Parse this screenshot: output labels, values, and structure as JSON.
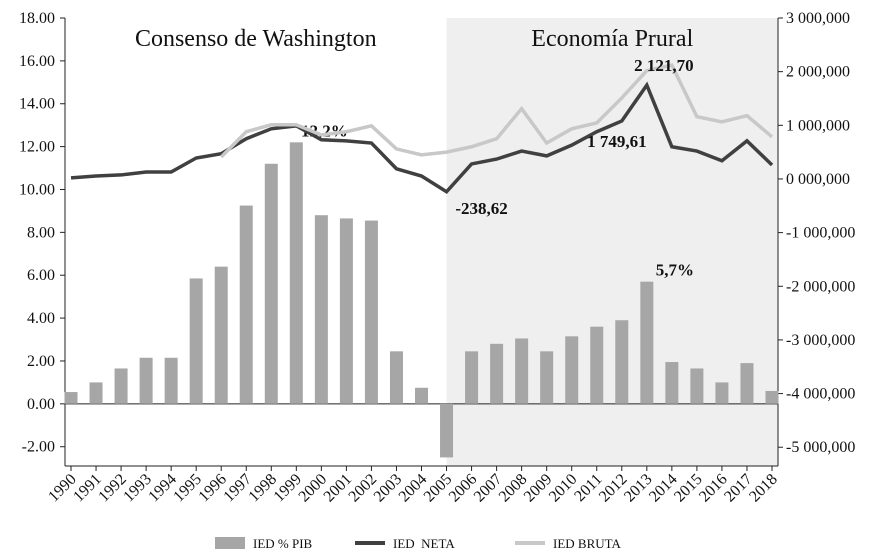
{
  "chart_data": {
    "type": "bar-line",
    "categories": [
      "1990",
      "1991",
      "1992",
      "1993",
      "1994",
      "1995",
      "1996",
      "1997",
      "1998",
      "1999",
      "2000",
      "2001",
      "2002",
      "2003",
      "2004",
      "2005",
      "2006",
      "2007",
      "2008",
      "2009",
      "2010",
      "2011",
      "2012",
      "2013",
      "2014",
      "2015",
      "2016",
      "2017",
      "2018"
    ],
    "periods": [
      {
        "label": "Consenso de Washington"
      },
      {
        "label": "Economía Prural",
        "from": "2005"
      }
    ],
    "shade_color": "#efefef",
    "series": [
      {
        "name": "IED % PIB",
        "type": "bar",
        "color": "#a6a6a6",
        "values": [
          0.55,
          1.0,
          1.65,
          2.15,
          2.15,
          5.85,
          6.4,
          9.25,
          11.2,
          12.2,
          8.8,
          8.65,
          8.55,
          2.45,
          0.75,
          -2.5,
          2.45,
          2.8,
          3.05,
          2.45,
          3.15,
          3.6,
          3.9,
          5.7,
          1.95,
          1.65,
          1.0,
          1.9,
          0.6
        ],
        "value_labels": [
          null,
          null,
          null,
          null,
          null,
          null,
          null,
          null,
          null,
          "12,2%",
          null,
          null,
          null,
          null,
          null,
          null,
          null,
          null,
          null,
          null,
          null,
          null,
          null,
          "5,7%",
          null,
          null,
          null,
          null,
          null
        ]
      },
      {
        "name": "IED  NETA",
        "type": "line",
        "axis": "y2",
        "color": "#404040",
        "values": [
          20,
          55,
          75,
          130,
          130,
          390,
          470,
          750,
          935,
          990,
          730,
          710,
          670,
          190,
          55,
          -238.62,
          280,
          370,
          520,
          430,
          630,
          880,
          1080,
          1749.61,
          600,
          520,
          340,
          710,
          260
        ],
        "value_labels": [
          null,
          null,
          null,
          null,
          null,
          null,
          null,
          null,
          null,
          null,
          null,
          null,
          null,
          null,
          null,
          "-238,62",
          null,
          null,
          null,
          null,
          null,
          null,
          null,
          "1 749,61",
          null,
          null,
          null,
          null,
          null
        ]
      },
      {
        "name": "IED BRUTA",
        "type": "line",
        "axis": "y2",
        "color": "#c8c8c8",
        "values": [
          null,
          null,
          null,
          null,
          null,
          null,
          410,
          880,
          1010,
          1010,
          820,
          880,
          990,
          560,
          450,
          500,
          600,
          750,
          1310,
          670,
          935,
          1045,
          1510,
          2020,
          2121.7,
          1160,
          1065,
          1180,
          785
        ],
        "value_labels": [
          null,
          null,
          null,
          null,
          null,
          null,
          null,
          null,
          null,
          null,
          null,
          null,
          null,
          null,
          null,
          null,
          null,
          null,
          null,
          null,
          null,
          null,
          null,
          null,
          "2 121,70",
          null,
          null,
          null,
          null
        ]
      }
    ],
    "ylim": [
      -2.9,
      18
    ],
    "yticks": [
      {
        "value": -2,
        "label": "-2.00"
      },
      {
        "value": 0,
        "label": "0.00"
      },
      {
        "value": 2,
        "label": "2.00"
      },
      {
        "value": 4,
        "label": "4.00"
      },
      {
        "value": 6,
        "label": "6.00"
      },
      {
        "value": 8,
        "label": "8.00"
      },
      {
        "value": 10,
        "label": "10.00"
      },
      {
        "value": 12,
        "label": "12.00"
      },
      {
        "value": 14,
        "label": "14.00"
      },
      {
        "value": 16,
        "label": "16.00"
      },
      {
        "value": 18,
        "label": "18.00"
      }
    ],
    "y2lim": [
      -5350,
      3000
    ],
    "y2ticks": [
      {
        "value": -5000,
        "label": "-5 000,000"
      },
      {
        "value": -4000,
        "label": "-4 000,000"
      },
      {
        "value": -3000,
        "label": "-3 000,000"
      },
      {
        "value": -2000,
        "label": "-2 000,000"
      },
      {
        "value": -1000,
        "label": "-1 000,000"
      },
      {
        "value": 0,
        "label": "0 000,000"
      },
      {
        "value": 1000,
        "label": "1 000,000"
      },
      {
        "value": 2000,
        "label": "2 000,000"
      },
      {
        "value": 3000,
        "label": "3 000,000"
      }
    ],
    "legend": "bottom"
  }
}
